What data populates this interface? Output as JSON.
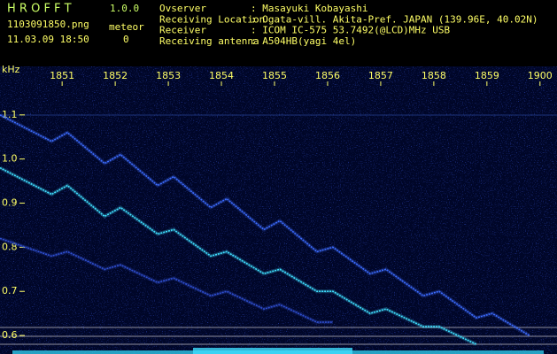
{
  "header": {
    "app_name": "H R O F F T",
    "version": "1.0.0",
    "file_name": "1103091850.png",
    "counter_label": "meteor",
    "timestamp": "11.03.09 18:50",
    "counter_value": "0",
    "info": [
      {
        "label": "Ovserver",
        "value": ": Masayuki Kobayashi"
      },
      {
        "label": "Receiving Location",
        "value": ": Ogata-vill. Akita-Pref. JAPAN (139.96E, 40.02N)"
      },
      {
        "label": "Receiver",
        "value": ": ICOM IC-575 53.7492(@LCD)MHz USB"
      },
      {
        "label": "Receiving antenna",
        "value": ": A504HB(yagi 4el)"
      }
    ]
  },
  "chart_data": {
    "type": "line",
    "y_label": "kHz",
    "x": [
      -0.17,
      0.8,
      1.1,
      1.8,
      2.1,
      2.8,
      3.1,
      3.8,
      4.1,
      4.8,
      5.1,
      5.8,
      6.1,
      6.8,
      7.1,
      7.8,
      8.1,
      8.8,
      9.1,
      9.8
    ],
    "series": [
      {
        "color": "#3d6dff",
        "values": [
          1.1,
          1.04,
          1.06,
          0.99,
          1.01,
          0.94,
          0.96,
          0.89,
          0.91,
          0.84,
          0.86,
          0.79,
          0.8,
          0.74,
          0.75,
          0.69,
          0.7,
          0.64,
          0.65,
          0.6
        ]
      },
      {
        "color": "#40e0ff",
        "values": [
          0.98,
          0.92,
          0.94,
          0.87,
          0.89,
          0.83,
          0.84,
          0.78,
          0.79,
          0.74,
          0.75,
          0.7,
          0.7,
          0.65,
          0.66,
          0.62,
          0.62,
          0.58,
          null,
          null
        ]
      },
      {
        "color": "#2f4fd0",
        "values": [
          0.82,
          0.78,
          0.79,
          0.75,
          0.76,
          0.72,
          0.73,
          0.69,
          0.7,
          0.66,
          0.67,
          0.63,
          0.63,
          null,
          null,
          null,
          null,
          null,
          null,
          null
        ]
      }
    ],
    "xlim": [
      -0.17,
      10.32
    ],
    "xticks": [
      {
        "value": 1,
        "label": "1851"
      },
      {
        "value": 2,
        "label": "1852"
      },
      {
        "value": 3,
        "label": "1853"
      },
      {
        "value": 4,
        "label": "1854"
      },
      {
        "value": 5,
        "label": "1855"
      },
      {
        "value": 6,
        "label": "1856"
      },
      {
        "value": 7,
        "label": "1857"
      },
      {
        "value": 8,
        "label": "1858"
      },
      {
        "value": 9,
        "label": "1859"
      },
      {
        "value": 10,
        "label": "1900"
      }
    ],
    "ylim": [
      0.558,
      1.21
    ],
    "yticks": [
      0.6,
      0.7,
      0.8,
      0.9,
      {
        "value": 1,
        "label": "1.0"
      },
      1.1
    ]
  }
}
